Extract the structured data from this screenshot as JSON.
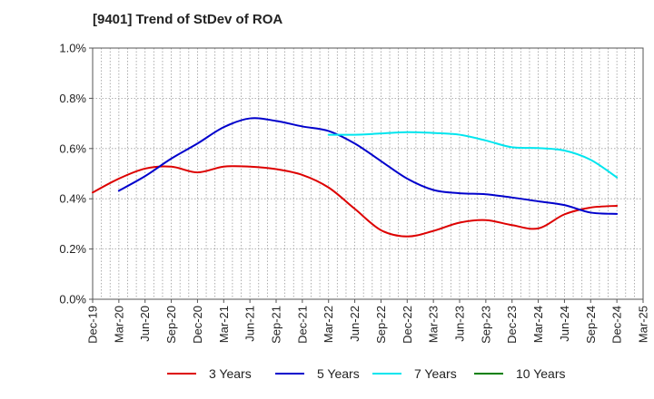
{
  "title": "[9401]  Trend of StDev of ROA",
  "chart_data": {
    "type": "line",
    "title": "[9401]  Trend of StDev of ROA",
    "xlabel": "",
    "ylabel": "",
    "ylim": [
      0,
      1.0
    ],
    "y_ticks": [
      "0.0%",
      "0.2%",
      "0.4%",
      "0.6%",
      "0.8%",
      "1.0%"
    ],
    "y_tick_values": [
      0,
      0.2,
      0.4,
      0.6,
      0.8,
      1.0
    ],
    "x_ticks": [
      "Dec-19",
      "Mar-20",
      "Jun-20",
      "Sep-20",
      "Dec-20",
      "Mar-21",
      "Jun-21",
      "Sep-21",
      "Dec-21",
      "Mar-22",
      "Jun-22",
      "Sep-22",
      "Dec-22",
      "Mar-23",
      "Jun-23",
      "Sep-23",
      "Dec-23",
      "Mar-24",
      "Jun-24",
      "Sep-24",
      "Dec-24",
      "Mar-25"
    ],
    "grid": true,
    "legend_position": "bottom",
    "series": [
      {
        "name": "3 Years",
        "color": "#dd0000",
        "x": [
          "Dec-19",
          "Mar-20",
          "Jun-20",
          "Sep-20",
          "Dec-20",
          "Mar-21",
          "Jun-21",
          "Sep-21",
          "Dec-21",
          "Mar-22",
          "Jun-22",
          "Sep-22",
          "Dec-22",
          "Mar-23",
          "Jun-23",
          "Sep-23",
          "Dec-23",
          "Mar-24",
          "Jun-24",
          "Sep-24",
          "Dec-24"
        ],
        "values": [
          0.425,
          0.48,
          0.52,
          0.528,
          0.505,
          0.528,
          0.528,
          0.518,
          0.495,
          0.445,
          0.36,
          0.275,
          0.25,
          0.272,
          0.305,
          0.315,
          0.295,
          0.282,
          0.338,
          0.365,
          0.372
        ]
      },
      {
        "name": "5 Years",
        "color": "#0000cc",
        "x": [
          "Mar-20",
          "Jun-20",
          "Sep-20",
          "Dec-20",
          "Mar-21",
          "Jun-21",
          "Sep-21",
          "Dec-21",
          "Mar-22",
          "Jun-22",
          "Sep-22",
          "Dec-22",
          "Mar-23",
          "Jun-23",
          "Sep-23",
          "Dec-23",
          "Mar-24",
          "Jun-24",
          "Sep-24",
          "Dec-24"
        ],
        "values": [
          0.432,
          0.49,
          0.56,
          0.62,
          0.685,
          0.72,
          0.71,
          0.688,
          0.67,
          0.62,
          0.55,
          0.48,
          0.435,
          0.422,
          0.418,
          0.405,
          0.39,
          0.375,
          0.345,
          0.34
        ]
      },
      {
        "name": "7 Years",
        "color": "#00e5ee",
        "x": [
          "Mar-22",
          "Jun-22",
          "Sep-22",
          "Dec-22",
          "Mar-23",
          "Jun-23",
          "Sep-23",
          "Dec-23",
          "Mar-24",
          "Jun-24",
          "Sep-24",
          "Dec-24"
        ],
        "values": [
          0.655,
          0.655,
          0.66,
          0.665,
          0.662,
          0.655,
          0.632,
          0.605,
          0.602,
          0.592,
          0.555,
          0.485
        ]
      },
      {
        "name": "10 Years",
        "color": "#008000",
        "x": [],
        "values": []
      }
    ]
  }
}
